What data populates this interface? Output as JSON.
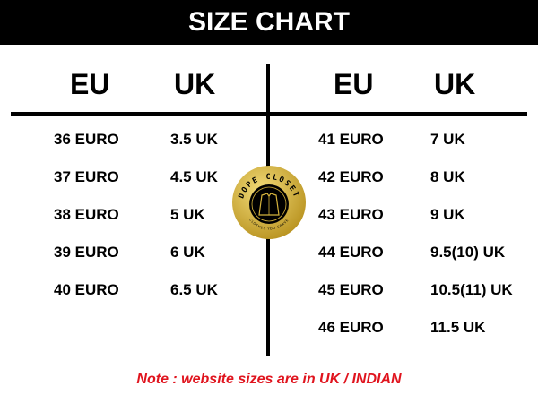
{
  "title": "SIZE CHART",
  "left": {
    "headers": [
      "EU",
      "UK"
    ],
    "rows": [
      [
        "36 EURO",
        "3.5 UK"
      ],
      [
        "37 EURO",
        "4.5 UK"
      ],
      [
        "38 EURO",
        "5 UK"
      ],
      [
        "39 EURO",
        "6 UK"
      ],
      [
        "40 EURO",
        "6.5 UK"
      ]
    ]
  },
  "right": {
    "headers": [
      "EU",
      "UK"
    ],
    "rows": [
      [
        "41 EURO",
        "7 UK"
      ],
      [
        "42 EURO",
        "8 UK"
      ],
      [
        "43 EURO",
        "9 UK"
      ],
      [
        "44 EURO",
        "9.5(10) UK"
      ],
      [
        "45 EURO",
        "10.5(11) UK"
      ],
      [
        "46 EURO",
        "11.5 UK"
      ]
    ]
  },
  "logo": {
    "brand": "DOPE CLOSET",
    "tagline": "CLOTHES YOU CRAVE",
    "colors": {
      "gold": "#d4b23c",
      "black": "#000000"
    }
  },
  "note": "Note : website sizes are in UK / INDIAN",
  "colors": {
    "note": "#e0141e",
    "header_bg": "#000000"
  }
}
